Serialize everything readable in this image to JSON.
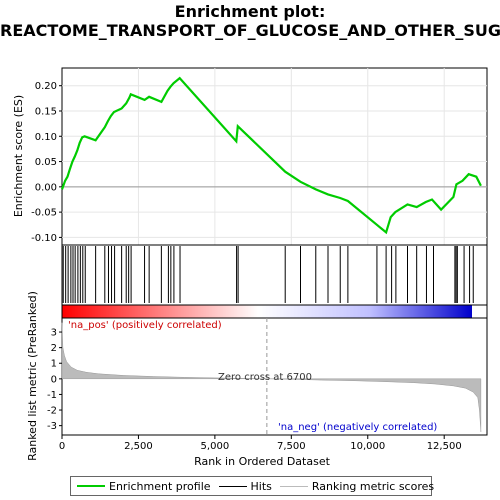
{
  "title_line1": "Enrichment plot:",
  "title_line2": "REACTOME_TRANSPORT_OF_GLUCOSE_AND_OTHER_SUGARS_BILE_SALTS_AND_ORGANIC_ACIDS_METAL_IONS_AND_AMINE_COMPOUNDS",
  "legend": {
    "items": [
      {
        "label": "Enrichment profile",
        "color": "#00cc00"
      },
      {
        "label": "Hits",
        "color": "#000000"
      },
      {
        "label": "Ranking metric scores",
        "color": "#bbbbbb"
      }
    ]
  },
  "annotations": {
    "pos_label": "'na_pos' (positively correlated)",
    "neg_label": "'na_neg' (negatively correlated)",
    "zero_cross": "Zero cross at 6700"
  },
  "chart_data": [
    {
      "type": "line",
      "name": "enrichment-profile",
      "ylabel": "Enrichment score (ES)",
      "xlim": [
        0,
        13900
      ],
      "ylim": [
        -0.115,
        0.235
      ],
      "yticks": [
        -0.1,
        -0.05,
        0.0,
        0.05,
        0.1,
        0.15,
        0.2
      ],
      "ytick_labels": [
        "-0.10",
        "-0.05",
        "0.00",
        "0.05",
        "0.10",
        "0.15",
        "0.20"
      ],
      "grid": true,
      "color": "#00cc00",
      "x": [
        0,
        100,
        180,
        260,
        340,
        420,
        500,
        580,
        660,
        740,
        1100,
        1400,
        1500,
        1600,
        1700,
        1950,
        2100,
        2200,
        2250,
        2700,
        2850,
        3250,
        3450,
        3550,
        3650,
        3850,
        5700,
        5750,
        7300,
        7800,
        8300,
        8700,
        9100,
        9350,
        10300,
        10600,
        10750,
        10900,
        11300,
        11600,
        11900,
        12100,
        12400,
        12800,
        12900,
        13100,
        13300,
        13550,
        13700
      ],
      "y": [
        -0.005,
        0.012,
        0.02,
        0.035,
        0.05,
        0.06,
        0.072,
        0.087,
        0.098,
        0.1,
        0.092,
        0.118,
        0.13,
        0.14,
        0.148,
        0.155,
        0.165,
        0.176,
        0.183,
        0.172,
        0.178,
        0.168,
        0.19,
        0.198,
        0.205,
        0.215,
        0.09,
        0.12,
        0.03,
        0.01,
        -0.005,
        -0.015,
        -0.022,
        -0.028,
        -0.075,
        -0.09,
        -0.06,
        -0.05,
        -0.035,
        -0.04,
        -0.03,
        -0.025,
        -0.045,
        -0.02,
        0.005,
        0.012,
        0.025,
        0.02,
        0.002
      ]
    },
    {
      "type": "scatter",
      "name": "hits",
      "xlim": [
        0,
        13900
      ],
      "color": "#000000",
      "x": [
        40,
        120,
        200,
        290,
        360,
        430,
        520,
        600,
        680,
        760,
        1100,
        1400,
        1520,
        1620,
        1720,
        1950,
        2100,
        2180,
        2260,
        2700,
        2850,
        3250,
        3480,
        3560,
        3660,
        3860,
        5710,
        5760,
        7300,
        7800,
        8300,
        8700,
        9100,
        9350,
        10300,
        10600,
        10780,
        10920,
        11300,
        11600,
        11920,
        12150,
        12850,
        12890,
        12930,
        13150,
        13330,
        13450
      ]
    },
    {
      "type": "area",
      "name": "ranking-metric-scores",
      "xlabel": "Rank in Ordered Dataset",
      "ylabel": "Ranked list metric (PreRanked)",
      "xlim": [
        0,
        13900
      ],
      "ylim": [
        -3.6,
        3.9
      ],
      "xticks": [
        0,
        2500,
        5000,
        7500,
        10000,
        12500
      ],
      "xtick_labels": [
        "0",
        "2,500",
        "5,000",
        "7,500",
        "10,000",
        "12,500"
      ],
      "yticks": [
        -3,
        -2,
        -1,
        0,
        1,
        2,
        3
      ],
      "ytick_labels": [
        "-3",
        "-2",
        "-1",
        "0",
        "1",
        "2",
        "3"
      ],
      "color": "#bbbbbb",
      "zero_cross": 6700,
      "x": [
        0,
        30,
        80,
        150,
        300,
        500,
        800,
        1200,
        2000,
        3000,
        4000,
        5000,
        6000,
        6700,
        7500,
        8500,
        9500,
        10500,
        11500,
        12200,
        12800,
        13200,
        13450,
        13600,
        13650,
        13700
      ],
      "y": [
        3.6,
        2.0,
        1.5,
        1.1,
        0.75,
        0.55,
        0.42,
        0.32,
        0.22,
        0.15,
        0.1,
        0.06,
        0.03,
        0.0,
        -0.03,
        -0.08,
        -0.12,
        -0.18,
        -0.25,
        -0.33,
        -0.45,
        -0.6,
        -0.85,
        -1.2,
        -2.0,
        -3.4
      ]
    }
  ]
}
